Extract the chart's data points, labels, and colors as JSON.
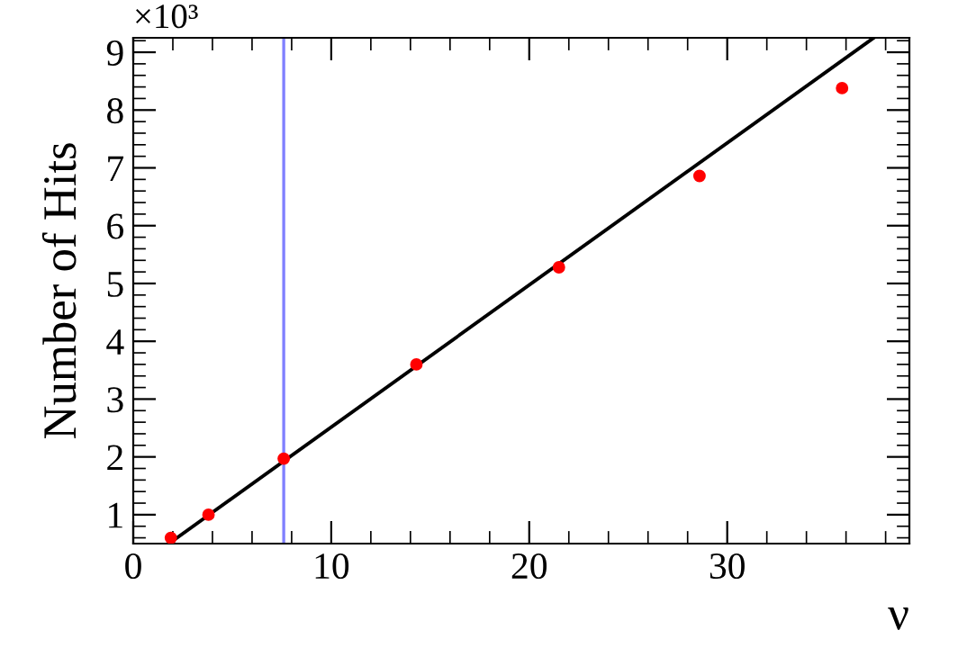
{
  "chart_data": {
    "type": "scatter",
    "xlabel": "ν",
    "ylabel": "Number of Hits",
    "annotations": [
      "×10³"
    ],
    "xlim": [
      0,
      39.2
    ],
    "ylim": [
      0.5,
      9.25
    ],
    "xticks": [
      0,
      10,
      20,
      30
    ],
    "yticks": [
      1,
      2,
      3,
      4,
      5,
      6,
      7,
      8,
      9
    ],
    "grid": false,
    "legend": false,
    "series": [
      {
        "marker": "circle",
        "color": "#ff0000",
        "x": [
          1.9,
          3.8,
          7.6,
          14.3,
          21.5,
          28.6,
          35.8
        ],
        "values": [
          0.6,
          1.0,
          1.97,
          3.6,
          5.28,
          6.86,
          8.38
        ]
      },
      {
        "type": "line",
        "marker": "none",
        "color": "#000000",
        "x": [
          1.8,
          37.4
        ],
        "values": [
          0.5,
          9.25
        ]
      }
    ],
    "ref_lines": [
      {
        "axis": "x",
        "value": 7.6,
        "color": "#8080ff"
      }
    ]
  }
}
